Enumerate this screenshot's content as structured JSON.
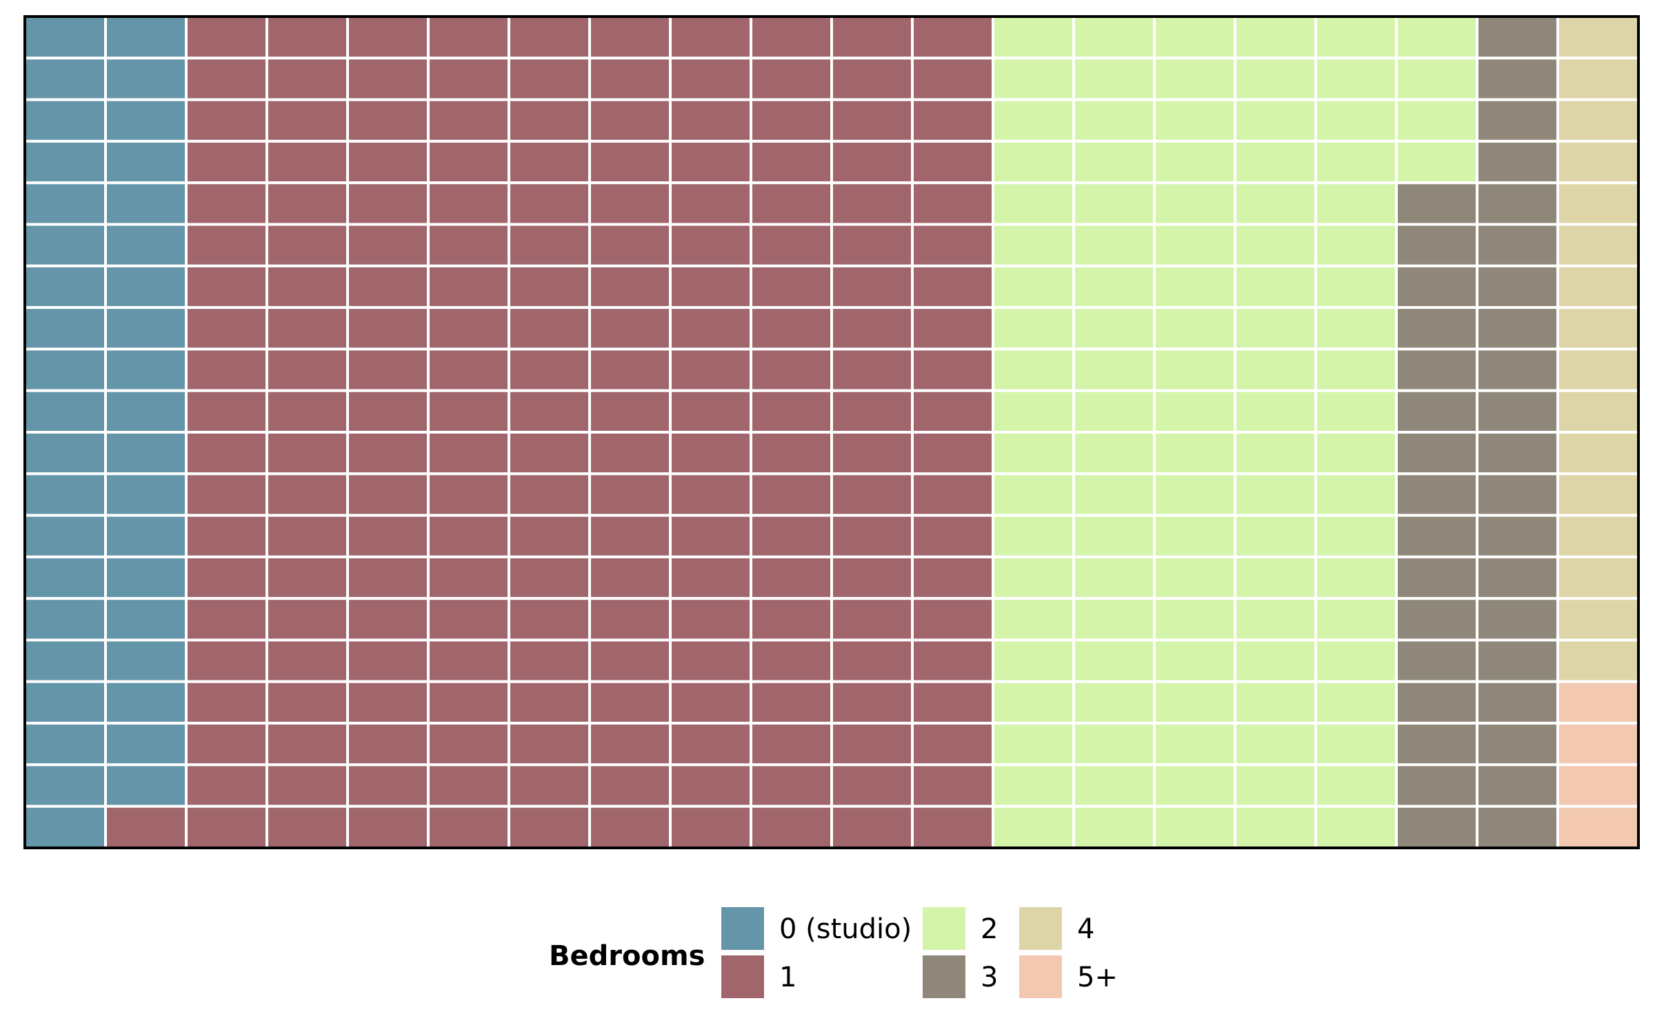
{
  "chart_data": {
    "type": "waffle",
    "grid": {
      "columns": 20,
      "rows": 20,
      "fill_order": "column-major, top to bottom, left to right"
    },
    "legend": {
      "title": "Bedrooms",
      "position": "bottom"
    },
    "categories": [
      "0 (studio)",
      "1",
      "2",
      "3",
      "4",
      "5+"
    ],
    "values": [
      39,
      201,
      104,
      36,
      16,
      4
    ],
    "colors": [
      "#6495a8",
      "#a0666c",
      "#d4f4aa",
      "#8f877a",
      "#ddd5a8",
      "#f2c8b0"
    ],
    "series": [
      {
        "name": "0 (studio)",
        "value": 39,
        "color": "#6495a8"
      },
      {
        "name": "1",
        "value": 201,
        "color": "#a0666c"
      },
      {
        "name": "2",
        "value": 104,
        "color": "#d4f4aa"
      },
      {
        "name": "3",
        "value": 36,
        "color": "#8f877a"
      },
      {
        "name": "4",
        "value": 16,
        "color": "#ddd5a8"
      },
      {
        "name": "5+",
        "value": 4,
        "color": "#f2c8b0"
      }
    ]
  }
}
